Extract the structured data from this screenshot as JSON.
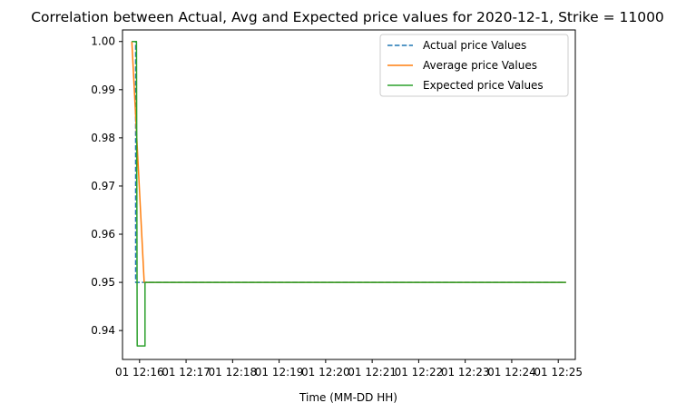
{
  "chart_data": {
    "type": "line",
    "title": "Correlation between Actual, Avg and Expected price values for 2020-12-1, Strike = 11000",
    "xlabel": "Time (MM-DD HH)",
    "ylabel": "",
    "x_tick_labels": [
      "01 12:16",
      "01 12:17",
      "01 12:18",
      "01 12:19",
      "01 12:20",
      "01 12:21",
      "01 12:22",
      "01 12:23",
      "01 12:24",
      "01 12:25"
    ],
    "y_ticks": [
      0.94,
      0.95,
      0.96,
      0.97,
      0.98,
      0.99,
      1.0
    ],
    "y_tick_labels": [
      "0.94",
      "0.95",
      "0.96",
      "0.97",
      "0.98",
      "0.99",
      "1.00"
    ],
    "xlim": [
      "2020-12-01 12:15:38",
      "2020-12-01 12:25:22"
    ],
    "ylim": [
      0.934,
      1.0024
    ],
    "grid": false,
    "legend_position": "upper-right",
    "series": [
      {
        "name": "Actual price Values",
        "color": "#1f77b4",
        "dash": true,
        "x": [
          "2020-12-01 12:15:50",
          "2020-12-01 12:15:55",
          "2020-12-01 12:15:55",
          "2020-12-01 12:16:07",
          "2020-12-01 12:25:10"
        ],
        "y": [
          1.0,
          1.0,
          0.95,
          0.95,
          0.95
        ]
      },
      {
        "name": "Average price Values",
        "color": "#ff7f0e",
        "dash": false,
        "x": [
          "2020-12-01 12:15:50",
          "2020-12-01 12:16:06",
          "2020-12-01 12:25:10"
        ],
        "y": [
          1.0,
          0.95,
          0.95
        ]
      },
      {
        "name": "Expected price Values",
        "color": "#2ca02c",
        "dash": false,
        "x": [
          "2020-12-01 12:15:50",
          "2020-12-01 12:15:56",
          "2020-12-01 12:15:57",
          "2020-12-01 12:16:07",
          "2020-12-01 12:16:07",
          "2020-12-01 12:25:10"
        ],
        "y": [
          1.0,
          1.0,
          0.9368,
          0.9368,
          0.95,
          0.95
        ]
      }
    ]
  }
}
